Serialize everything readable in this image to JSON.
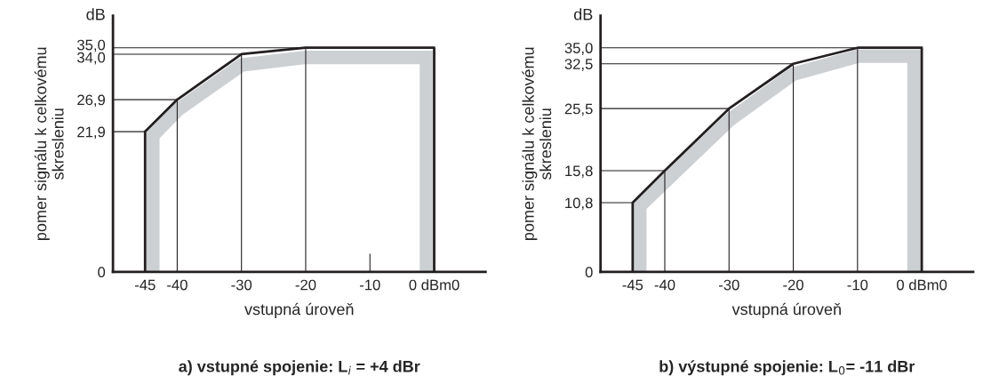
{
  "chart_data": [
    {
      "type": "line",
      "title": "a) vstupné spojenie: L$_{i}$ = +4 dBr",
      "xlabel": "vstupná úroveň",
      "ylabel": "pomer signálu k celkovému\nskresleniu",
      "annotations": [
        "dB"
      ],
      "xlim": [
        -50,
        8
      ],
      "ylim": [
        0,
        40
      ],
      "xticks": [
        -45,
        -40,
        -30,
        -20,
        -10,
        {
          "value": 0,
          "label": "0 dBm0"
        }
      ],
      "yticks": [
        0,
        {
          "value": 21.9,
          "label": "21,9"
        },
        {
          "value": 26.9,
          "label": "26,9"
        },
        {
          "value": 34.0,
          "label": "34,0"
        },
        {
          "value": 35.0,
          "label": "35,0"
        }
      ],
      "grid": false,
      "series": [
        {
          "color": "#cdd0d3",
          "x": [
            -43.8,
            -43.8,
            -39.9,
            -30.0,
            -20.0,
            -1.2,
            -1.2
          ],
          "values": [
            0,
            21.3,
            25.3,
            32.3,
            33.5,
            33.5,
            0
          ]
        },
        {
          "color": "#231f20",
          "x": [
            -50,
            -45
          ],
          "values": [
            21.9,
            21.9
          ]
        },
        {
          "color": "#231f20",
          "x": [
            -50,
            -40
          ],
          "values": [
            26.9,
            26.9
          ]
        },
        {
          "color": "#231f20",
          "x": [
            -50,
            -30
          ],
          "values": [
            34.0,
            34.0
          ]
        },
        {
          "color": "#231f20",
          "x": [
            -50,
            -20
          ],
          "values": [
            35.0,
            35.0
          ]
        },
        {
          "color": "#231f20",
          "x": [
            -40,
            -40
          ],
          "values": [
            0,
            26.9
          ]
        },
        {
          "color": "#231f20",
          "x": [
            -30,
            -30
          ],
          "values": [
            0,
            34.0
          ]
        },
        {
          "color": "#231f20",
          "x": [
            -20,
            -20
          ],
          "values": [
            0,
            35.0
          ]
        },
        {
          "color": "#231f20",
          "x": [
            -10,
            -10
          ],
          "values": [
            0,
            2.8
          ]
        },
        {
          "color": "#231f20",
          "x": [
            -45,
            -45,
            -40,
            -30,
            -20,
            0,
            0
          ],
          "values": [
            0,
            21.9,
            26.9,
            34.0,
            35.0,
            35.0,
            0
          ]
        }
      ]
    },
    {
      "type": "line",
      "title": "b) výstupné spojenie: L$_{0}$= -11 dBr",
      "xlabel": "vstupná úroveň",
      "ylabel": "pomer signálu k celkovému\nskresleniu",
      "annotations": [
        "dB"
      ],
      "xlim": [
        -50,
        8
      ],
      "ylim": [
        0,
        40
      ],
      "xticks": [
        -45,
        -40,
        -30,
        -20,
        -10,
        {
          "value": 0,
          "label": "0 dBm0"
        }
      ],
      "yticks": [
        0,
        {
          "value": 10.8,
          "label": "10,8"
        },
        {
          "value": 15.8,
          "label": "15,8"
        },
        {
          "value": 25.5,
          "label": "25,5"
        },
        {
          "value": 32.5,
          "label": "32,5"
        },
        {
          "value": 35.0,
          "label": "35,0"
        }
      ],
      "grid": false,
      "series": [
        {
          "color": "#cdd0d3",
          "x": [
            -43.9,
            -43.9,
            -29.95,
            -20.0,
            -9.9,
            -1.2,
            -1.2
          ],
          "values": [
            0,
            10.3,
            23.7,
            30.9,
            33.7,
            33.7,
            0
          ]
        },
        {
          "color": "#231f20",
          "x": [
            -50,
            -45
          ],
          "values": [
            10.8,
            10.8
          ]
        },
        {
          "color": "#231f20",
          "x": [
            -50,
            -40
          ],
          "values": [
            15.8,
            15.8
          ]
        },
        {
          "color": "#231f20",
          "x": [
            -50,
            -30
          ],
          "values": [
            25.5,
            25.5
          ]
        },
        {
          "color": "#231f20",
          "x": [
            -50,
            -20
          ],
          "values": [
            32.5,
            32.5
          ]
        },
        {
          "color": "#231f20",
          "x": [
            -50,
            -10
          ],
          "values": [
            35.0,
            35.0
          ]
        },
        {
          "color": "#231f20",
          "x": [
            -40,
            -40
          ],
          "values": [
            0,
            15.8
          ]
        },
        {
          "color": "#231f20",
          "x": [
            -30,
            -30
          ],
          "values": [
            0,
            25.5
          ]
        },
        {
          "color": "#231f20",
          "x": [
            -20,
            -20
          ],
          "values": [
            0,
            32.5
          ]
        },
        {
          "color": "#231f20",
          "x": [
            -10,
            -10
          ],
          "values": [
            0,
            35.0
          ]
        },
        {
          "color": "#231f20",
          "x": [
            -45,
            -45,
            -40,
            -30,
            -20,
            -10,
            0,
            0
          ],
          "values": [
            0,
            10.8,
            15.8,
            25.5,
            32.5,
            35.0,
            35.0,
            0
          ]
        }
      ]
    }
  ]
}
